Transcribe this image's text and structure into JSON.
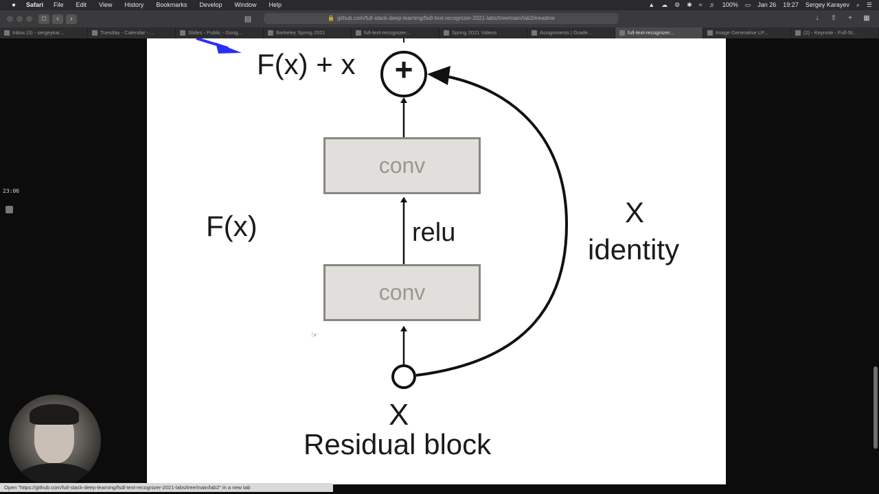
{
  "menubar": {
    "app": "Safari",
    "items": [
      "File",
      "Edit",
      "View",
      "History",
      "Bookmarks",
      "Develop",
      "Window",
      "Help"
    ],
    "battery": "100%",
    "date": "Jan 26",
    "time": "19:27",
    "user": "Sergey Karayev"
  },
  "toolbar": {
    "address": "github.com/full-stack-deep-learning/fsdl-text-recognizer-2021-labs/tree/main/lab2#readme"
  },
  "tabs": [
    {
      "label": "Inbox (3) - sergeykar..."
    },
    {
      "label": "Tuesday - Calendar - ..."
    },
    {
      "label": "Slides - Public - Goog..."
    },
    {
      "label": "Berkeley Spring 2021"
    },
    {
      "label": "full-text-recognizer..."
    },
    {
      "label": "Spring 2021 Videos"
    },
    {
      "label": "Assignments | Grade..."
    },
    {
      "label": "full-text-recognizer...",
      "active": true
    },
    {
      "label": "Image Generative LP..."
    },
    {
      "label": "(2) - Keynote - Full-St..."
    }
  ],
  "slide": {
    "sum_label": "F(x) + x",
    "plus_symbol": "+",
    "conv_top": "conv",
    "conv_bottom": "conv",
    "relu": "relu",
    "fx_label": "F(x)",
    "identity_x": "X",
    "identity_label": "identity",
    "input_x": "X",
    "caption": "Residual block"
  },
  "overlay": {
    "timer": "23:06"
  },
  "statusbar": {
    "text": "Open \"https://github.com/full-stack-deep-learning/fsdl-text-recognizer-2021-labs/tree/main/lab2\" in a new tab"
  },
  "colors": {
    "annotation_arrow": "#2a2ef5",
    "conv_fill": "#e1dfdc",
    "conv_border": "#8a8680"
  }
}
